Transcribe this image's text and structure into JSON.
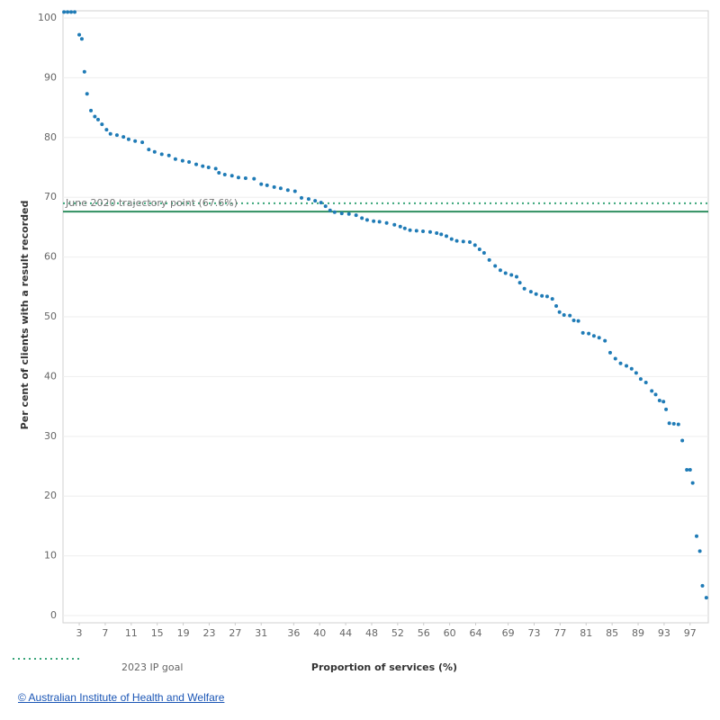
{
  "chart_data": {
    "type": "scatter",
    "y_label": "Per cent of clients with a result recorded",
    "x_label": "Proportion of services (%)",
    "color": "#1f7bb6",
    "grid": true,
    "xlim": [
      0.5,
      99.8
    ],
    "ylim": [
      -1.2,
      101.2
    ],
    "xticks": [
      3,
      7,
      11,
      15,
      19,
      23,
      27,
      31,
      36,
      40,
      44,
      48,
      52,
      56,
      60,
      64,
      69,
      73,
      77,
      81,
      85,
      89,
      93,
      97
    ],
    "yticks": [
      0,
      10,
      20,
      30,
      40,
      50,
      60,
      70,
      80,
      90,
      100
    ],
    "x": [
      0.65,
      1.2,
      1.75,
      2.3,
      3.0,
      3.4,
      3.8,
      4.2,
      4.8,
      5.4,
      5.9,
      6.5,
      7.2,
      7.8,
      8.8,
      9.8,
      10.6,
      11.6,
      12.7,
      13.7,
      14.6,
      15.7,
      16.8,
      17.8,
      18.9,
      19.9,
      21.0,
      22.0,
      22.9,
      24.0,
      24.5,
      25.4,
      26.5,
      27.5,
      28.6,
      29.9,
      31.0,
      31.9,
      33.0,
      34.0,
      35.1,
      36.2,
      37.2,
      38.3,
      39.3,
      40.2,
      40.9,
      41.6,
      42.3,
      43.4,
      44.5,
      45.6,
      46.5,
      47.3,
      48.3,
      49.2,
      50.3,
      51.5,
      52.4,
      53.1,
      53.9,
      54.9,
      55.9,
      57.0,
      58.0,
      58.7,
      59.5,
      60.3,
      61.1,
      62.1,
      63.1,
      63.9,
      64.6,
      65.3,
      66.1,
      67.0,
      67.8,
      68.6,
      69.5,
      70.3,
      70.8,
      71.5,
      72.5,
      73.3,
      74.2,
      75.0,
      75.8,
      76.4,
      76.9,
      77.6,
      78.5,
      79.1,
      79.8,
      80.5,
      81.4,
      82.2,
      83.0,
      83.9,
      84.7,
      85.5,
      86.3,
      87.2,
      88.0,
      88.7,
      89.4,
      90.2,
      91.1,
      91.7,
      92.3,
      92.9,
      93.3,
      93.8,
      94.5,
      95.2,
      95.8,
      96.5,
      97.0,
      97.4,
      98.0,
      98.5,
      98.9,
      99.5
    ],
    "values": [
      101,
      101,
      101,
      101,
      97.2,
      96.5,
      91,
      87.3,
      84.5,
      83.5,
      83,
      82.2,
      81.3,
      80.6,
      80.4,
      80.1,
      79.7,
      79.4,
      79.2,
      78,
      77.6,
      77.2,
      77,
      76.4,
      76.1,
      75.9,
      75.5,
      75.2,
      75,
      74.8,
      74.1,
      73.8,
      73.6,
      73.3,
      73.2,
      73.1,
      72.2,
      72,
      71.7,
      71.5,
      71.2,
      71,
      69.9,
      69.7,
      69.4,
      69.1,
      68.5,
      67.8,
      67.5,
      67.3,
      67.2,
      67,
      66.5,
      66.2,
      66,
      65.9,
      65.7,
      65.4,
      65.1,
      64.8,
      64.5,
      64.4,
      64.3,
      64.2,
      64,
      63.8,
      63.5,
      63,
      62.7,
      62.6,
      62.5,
      62,
      61.3,
      60.7,
      59.5,
      58.5,
      57.8,
      57.3,
      57,
      56.7,
      55.7,
      54.7,
      54.2,
      53.8,
      53.5,
      53.4,
      53,
      51.8,
      50.8,
      50.3,
      50.2,
      49.4,
      49.3,
      47.3,
      47.2,
      46.8,
      46.5,
      46,
      44,
      43,
      42.2,
      41.8,
      41.3,
      40.6,
      39.6,
      39,
      37.6,
      37,
      36,
      35.8,
      34.5,
      32.2,
      32.1,
      32,
      29.3,
      24.4,
      24.4,
      22.2,
      13.3,
      10.8,
      5,
      3
    ],
    "reference_lines": [
      {
        "name": "2023 IP goal",
        "value": 69,
        "style": "dotted",
        "color": "#3aa57a"
      },
      {
        "label": "June 2020 trajectory point (67.6%)",
        "value": 67.6,
        "style": "solid",
        "color": "#2f8f60"
      }
    ]
  },
  "footer": "© Australian Institute of Health and Welfare"
}
